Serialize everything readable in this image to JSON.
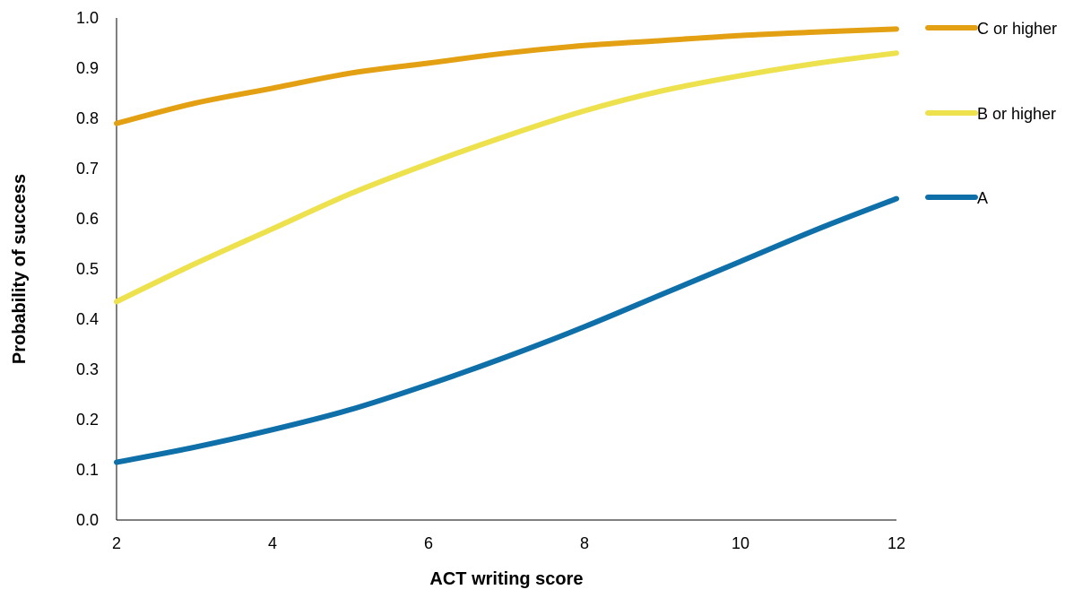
{
  "chart_data": {
    "type": "line",
    "title": "",
    "xlabel": "ACT writing score",
    "ylabel": "Probability of success",
    "xlim": [
      2,
      12
    ],
    "ylim": [
      0.0,
      1.0
    ],
    "x_ticks": [
      "2",
      "4",
      "6",
      "8",
      "10",
      "12"
    ],
    "y_ticks": [
      "0.0",
      "0.1",
      "0.2",
      "0.3",
      "0.4",
      "0.5",
      "0.6",
      "0.7",
      "0.8",
      "0.9",
      "1.0"
    ],
    "grid": false,
    "legend_position": "right",
    "x": [
      2,
      3,
      4,
      5,
      6,
      7,
      8,
      9,
      10,
      11,
      12
    ],
    "series": [
      {
        "name": "C or higher",
        "color": "#E3A012",
        "values": [
          0.79,
          0.83,
          0.86,
          0.89,
          0.91,
          0.93,
          0.945,
          0.955,
          0.965,
          0.972,
          0.978
        ]
      },
      {
        "name": "B or higher",
        "color": "#EEE14E",
        "values": [
          0.435,
          0.51,
          0.58,
          0.65,
          0.71,
          0.765,
          0.815,
          0.855,
          0.885,
          0.91,
          0.93
        ]
      },
      {
        "name": "A",
        "color": "#0F6FA8",
        "values": [
          0.115,
          0.145,
          0.18,
          0.22,
          0.27,
          0.325,
          0.385,
          0.45,
          0.515,
          0.58,
          0.64
        ]
      }
    ]
  }
}
